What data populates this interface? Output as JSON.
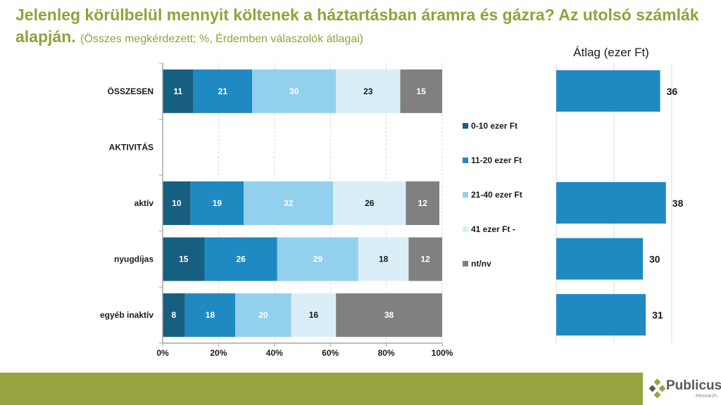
{
  "header": {
    "title_main": "Jelenleg körülbelül mennyit költenek a háztartásban áramra és gázra? Az utolsó számlák alapján.",
    "title_sub": "(Összes megkérdezett; %, Érdemben válaszolók átlagai)"
  },
  "chart_data": [
    {
      "type": "bar",
      "orientation": "horizontal",
      "stacked": "percent",
      "categories": [
        "ÖSSZESEN",
        "AKTIVITÁS",
        "aktív",
        "nyugdíjas",
        "egyéb inaktív"
      ],
      "series": [
        {
          "name": "0-10 ezer Ft",
          "color": "#175F80",
          "label_color": "#ffffff",
          "values": [
            11,
            null,
            10,
            15,
            8
          ]
        },
        {
          "name": "11-20 ezer Ft",
          "color": "#1F8AC2",
          "label_color": "#ffffff",
          "values": [
            21,
            null,
            19,
            26,
            18
          ]
        },
        {
          "name": "21-40 ezer Ft",
          "color": "#93D0EE",
          "label_color": "#ffffff",
          "values": [
            30,
            null,
            32,
            29,
            20
          ]
        },
        {
          "name": "41 ezer Ft -",
          "color": "#DAEEF8",
          "label_color": "#1a1a1a",
          "values": [
            23,
            null,
            26,
            18,
            16
          ]
        },
        {
          "name": "nt/nv",
          "color": "#808080",
          "label_color": "#ffffff",
          "values": [
            15,
            null,
            12,
            12,
            38
          ]
        }
      ],
      "xlim": [
        0,
        100
      ],
      "xticks": [
        "0%",
        "20%",
        "40%",
        "60%",
        "80%",
        "100%"
      ],
      "grid": true,
      "legend": "right",
      "title": "",
      "xlabel": "",
      "ylabel": ""
    },
    {
      "type": "bar",
      "orientation": "horizontal",
      "title": "Átlag (ezer Ft)",
      "categories": [
        "ÖSSZESEN",
        "AKTIVITÁS",
        "aktív",
        "nyugdíjas",
        "egyéb inaktív"
      ],
      "values": [
        36,
        null,
        38,
        30,
        31
      ],
      "color": "#1F8AC2",
      "xlim": [
        0,
        40
      ],
      "grid": true
    }
  ],
  "footer": {
    "logo_name": "Publicus",
    "logo_sub": "Research"
  }
}
